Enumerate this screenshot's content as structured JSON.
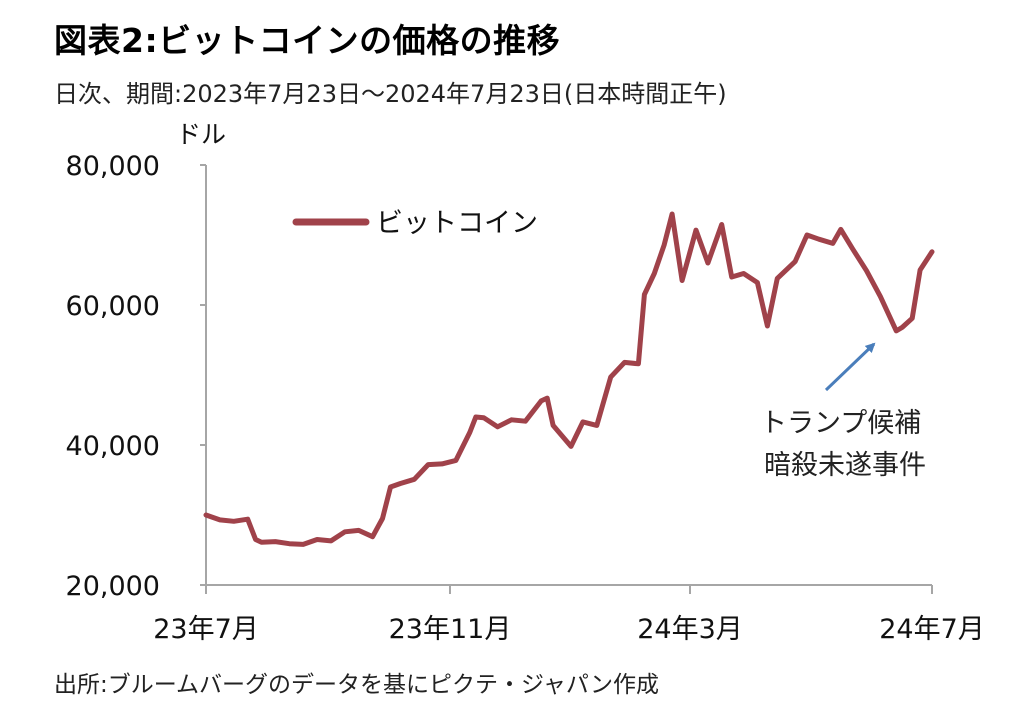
{
  "header": {
    "title": "図表2:ビットコインの価格の推移",
    "subtitle": "日次、期間:2023年7月23日～2024年7月23日(日本時間正午)"
  },
  "footer": {
    "source": "出所:ブルームバーグのデータを基にピクテ・ジャパン作成"
  },
  "colors": {
    "series": "#A0424A",
    "arrow": "#4A7EBB",
    "axis": "#A6A6A6"
  },
  "chart_data": {
    "type": "line",
    "ylabel": "ドル",
    "ylim": [
      20000,
      80000
    ],
    "yticks": [
      20000,
      40000,
      60000,
      80000
    ],
    "ytick_labels": [
      "20,000",
      "40,000",
      "60,000",
      "80,000"
    ],
    "xlim": [
      "2023-07-23",
      "2024-07-23"
    ],
    "xticks": [
      "2023-07-23",
      "2023-11-23",
      "2024-03-23",
      "2024-07-23"
    ],
    "xtick_labels": [
      "23年7月",
      "23年11月",
      "24年3月",
      "24年7月"
    ],
    "legend": {
      "position": "top-left"
    },
    "series": [
      {
        "name": "ビットコイン",
        "x": [
          "2023-07-23",
          "2023-07-30",
          "2023-08-06",
          "2023-08-13",
          "2023-08-17",
          "2023-08-20",
          "2023-08-27",
          "2023-09-03",
          "2023-09-10",
          "2023-09-17",
          "2023-09-24",
          "2023-10-01",
          "2023-10-08",
          "2023-10-15",
          "2023-10-20",
          "2023-10-24",
          "2023-10-29",
          "2023-11-05",
          "2023-11-12",
          "2023-11-19",
          "2023-11-26",
          "2023-12-03",
          "2023-12-06",
          "2023-12-10",
          "2023-12-17",
          "2023-12-24",
          "2023-12-31",
          "2024-01-08",
          "2024-01-11",
          "2024-01-14",
          "2024-01-23",
          "2024-01-29",
          "2024-02-05",
          "2024-02-12",
          "2024-02-19",
          "2024-02-26",
          "2024-02-29",
          "2024-03-05",
          "2024-03-10",
          "2024-03-14",
          "2024-03-19",
          "2024-03-26",
          "2024-04-01",
          "2024-04-08",
          "2024-04-13",
          "2024-04-19",
          "2024-04-26",
          "2024-05-01",
          "2024-05-06",
          "2024-05-15",
          "2024-05-21",
          "2024-05-27",
          "2024-06-03",
          "2024-06-07",
          "2024-06-13",
          "2024-06-20",
          "2024-06-27",
          "2024-07-05",
          "2024-07-08",
          "2024-07-13",
          "2024-07-17",
          "2024-07-23"
        ],
        "values": [
          30000,
          29300,
          29100,
          29400,
          26500,
          26100,
          26200,
          25900,
          25800,
          26500,
          26300,
          27600,
          27800,
          26900,
          29500,
          34000,
          34500,
          35100,
          37200,
          37300,
          37800,
          41800,
          44000,
          43900,
          42600,
          43600,
          43400,
          46300,
          46700,
          42800,
          39800,
          43300,
          42800,
          49700,
          51800,
          51600,
          61500,
          64500,
          68600,
          73000,
          63500,
          70700,
          66000,
          71500,
          64000,
          64500,
          63200,
          57000,
          63800,
          66200,
          70000,
          69400,
          68800,
          70800,
          68000,
          64900,
          61200,
          56300,
          56800,
          58100,
          65000,
          67600
        ]
      }
    ],
    "annotations": [
      {
        "text": [
          "トランプ候補",
          "暗殺未遂事件"
        ],
        "x": "2024-07-13"
      }
    ]
  }
}
